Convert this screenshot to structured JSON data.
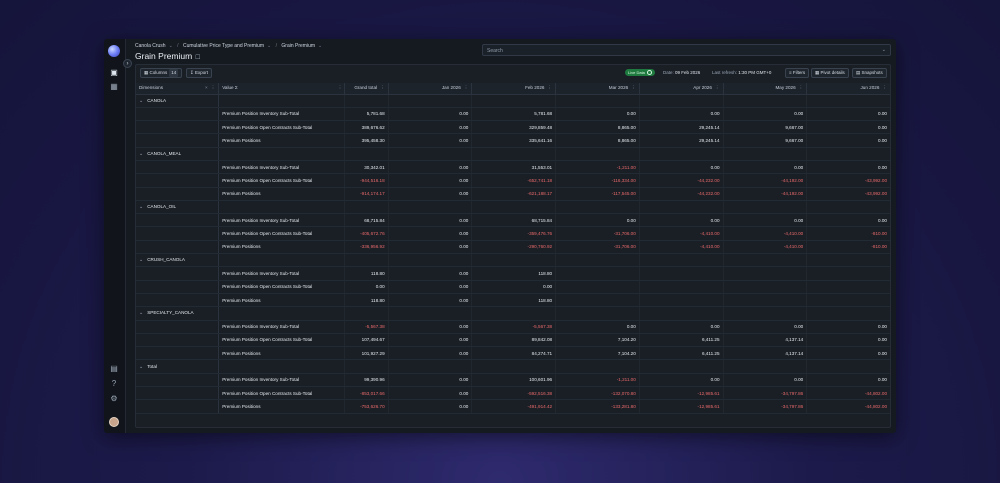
{
  "breadcrumb": [
    "Canola Crush",
    "Cumulative Price Type and Premium",
    "Grain Premium"
  ],
  "page_title": "Grain Premium",
  "search": {
    "placeholder": "Search"
  },
  "toolbar": {
    "columns_label": "Columns",
    "columns_count": "14",
    "export_label": "Export",
    "live_label": "Live Data",
    "date_label": "Date:",
    "date_value": "09 Feb 2026",
    "refresh_label": "Last refresh:",
    "refresh_value": "1:30 PM GMT+0",
    "filters_label": "Filters",
    "pivot_label": "Pivot details",
    "snapshots_label": "Snapshots"
  },
  "columns": [
    "Dimensions",
    "Value Σ",
    "Grand total",
    "Jan 2026",
    "Feb 2026",
    "Mar 2026",
    "Apr 2026",
    "May 2026",
    "Jun 2026"
  ],
  "groups": [
    {
      "name": "CANOLA",
      "rows": [
        {
          "label": "Premium Position Inventory Sub-Total",
          "values": [
            "5,781.68",
            "0.00",
            "5,781.68",
            "0.00",
            "0.00",
            "0.00",
            "0.00"
          ]
        },
        {
          "label": "Premium Position Open Contracts Sub-Total",
          "values": [
            "389,676.62",
            "0.00",
            "329,859.48",
            "8,865.00",
            "29,245.14",
            "9,667.00",
            "0.00"
          ]
        },
        {
          "label": "Premium Positions",
          "values": [
            "395,458.30",
            "0.00",
            "335,641.16",
            "8,865.00",
            "29,245.14",
            "9,667.00",
            "0.00"
          ]
        }
      ]
    },
    {
      "name": "CANOLA_MEAL",
      "rows": [
        {
          "label": "Premium Position Inventory Sub-Total",
          "values": [
            "30,342.01",
            "0.00",
            "31,553.01",
            "-1,211.00",
            "0.00",
            "0.00",
            "0.00"
          ]
        },
        {
          "label": "Premium Position Open Contracts Sub-Total",
          "values": [
            "-944,516.18",
            "0.00",
            "-652,741.18",
            "-116,334.00",
            "-44,232.00",
            "-44,192.00",
            "-43,992.00"
          ]
        },
        {
          "label": "Premium Positions",
          "values": [
            "-914,174.17",
            "0.00",
            "-621,188.17",
            "-117,545.00",
            "-44,232.00",
            "-44,192.00",
            "-43,992.00"
          ]
        }
      ]
    },
    {
      "name": "CANOLA_OIL",
      "rows": [
        {
          "label": "Premium Position Inventory Sub-Total",
          "values": [
            "68,715.84",
            "0.00",
            "68,715.84",
            "0.00",
            "0.00",
            "0.00",
            "0.00"
          ]
        },
        {
          "label": "Premium Position Open Contracts Sub-Total",
          "values": [
            "-405,672.76",
            "0.00",
            "-359,476.76",
            "-31,706.00",
            "-4,410.00",
            "-4,410.00",
            "-810.00"
          ]
        },
        {
          "label": "Premium Positions",
          "values": [
            "-336,956.92",
            "0.00",
            "-290,760.92",
            "-31,706.00",
            "-4,410.00",
            "-4,410.00",
            "-810.00"
          ]
        }
      ]
    },
    {
      "name": "CRUSH_CANOLA",
      "rows": [
        {
          "label": "Premium Position Inventory Sub-Total",
          "values": [
            "118.80",
            "0.00",
            "118.80",
            "",
            "",
            "",
            ""
          ]
        },
        {
          "label": "Premium Position Open Contracts Sub-Total",
          "values": [
            "0.00",
            "0.00",
            "0.00",
            "",
            "",
            "",
            ""
          ]
        },
        {
          "label": "Premium Positions",
          "values": [
            "118.80",
            "0.00",
            "118.80",
            "",
            "",
            "",
            ""
          ]
        }
      ]
    },
    {
      "name": "SPECIALTY_CANOLA",
      "rows": [
        {
          "label": "Premium Position Inventory Sub-Total",
          "values": [
            "-5,567.38",
            "0.00",
            "-5,567.38",
            "0.00",
            "0.00",
            "0.00",
            "0.00"
          ]
        },
        {
          "label": "Premium Position Open Contracts Sub-Total",
          "values": [
            "107,494.67",
            "0.00",
            "89,842.08",
            "7,104.20",
            "6,411.25",
            "4,137.14",
            "0.00"
          ]
        },
        {
          "label": "Premium Positions",
          "values": [
            "101,927.29",
            "0.00",
            "84,274.71",
            "7,104.20",
            "6,411.25",
            "4,137.14",
            "0.00"
          ]
        }
      ]
    },
    {
      "name": "Total",
      "rows": [
        {
          "label": "Premium Position Inventory Sub-Total",
          "values": [
            "99,390.96",
            "0.00",
            "100,601.96",
            "-1,211.00",
            "0.00",
            "0.00",
            "0.00"
          ]
        },
        {
          "label": "Premium Position Open Contracts Sub-Total",
          "values": [
            "-853,017.66",
            "0.00",
            "-592,516.38",
            "-132,070.80",
            "-12,985.61",
            "-34,797.86",
            "-44,802.00"
          ]
        },
        {
          "label": "Premium Positions",
          "values": [
            "-753,626.70",
            "0.00",
            "-491,914.42",
            "-133,281.80",
            "-12,985.61",
            "-34,797.86",
            "-44,802.00"
          ]
        }
      ]
    }
  ],
  "colors": {
    "negative": "#ea6a6a",
    "live": "#1e7a3e",
    "background": "#1a1f26"
  },
  "icons": {
    "logo": "brand-logo-icon",
    "grid": "grid-icon",
    "chart": "chart-icon",
    "book": "book-icon",
    "help": "help-icon",
    "settings": "gear-icon"
  }
}
